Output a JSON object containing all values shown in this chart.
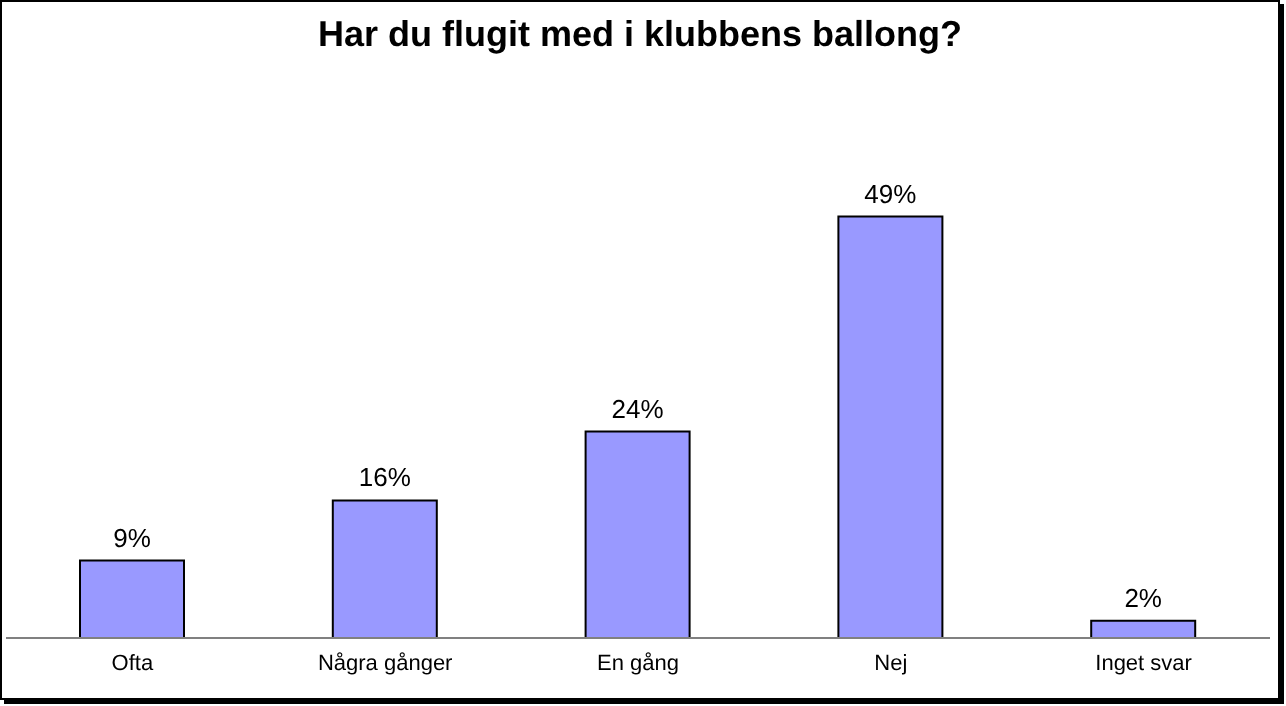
{
  "chart_data": {
    "type": "bar",
    "title": "Har du flugit med i klubbens ballong?",
    "categories": [
      "Ofta",
      "Några gånger",
      "En gång",
      "Nej",
      "Inget svar"
    ],
    "values": [
      9,
      16,
      24,
      49,
      2
    ],
    "value_labels": [
      "9%",
      "16%",
      "24%",
      "49%",
      "2%"
    ],
    "color": "#9999ff"
  }
}
